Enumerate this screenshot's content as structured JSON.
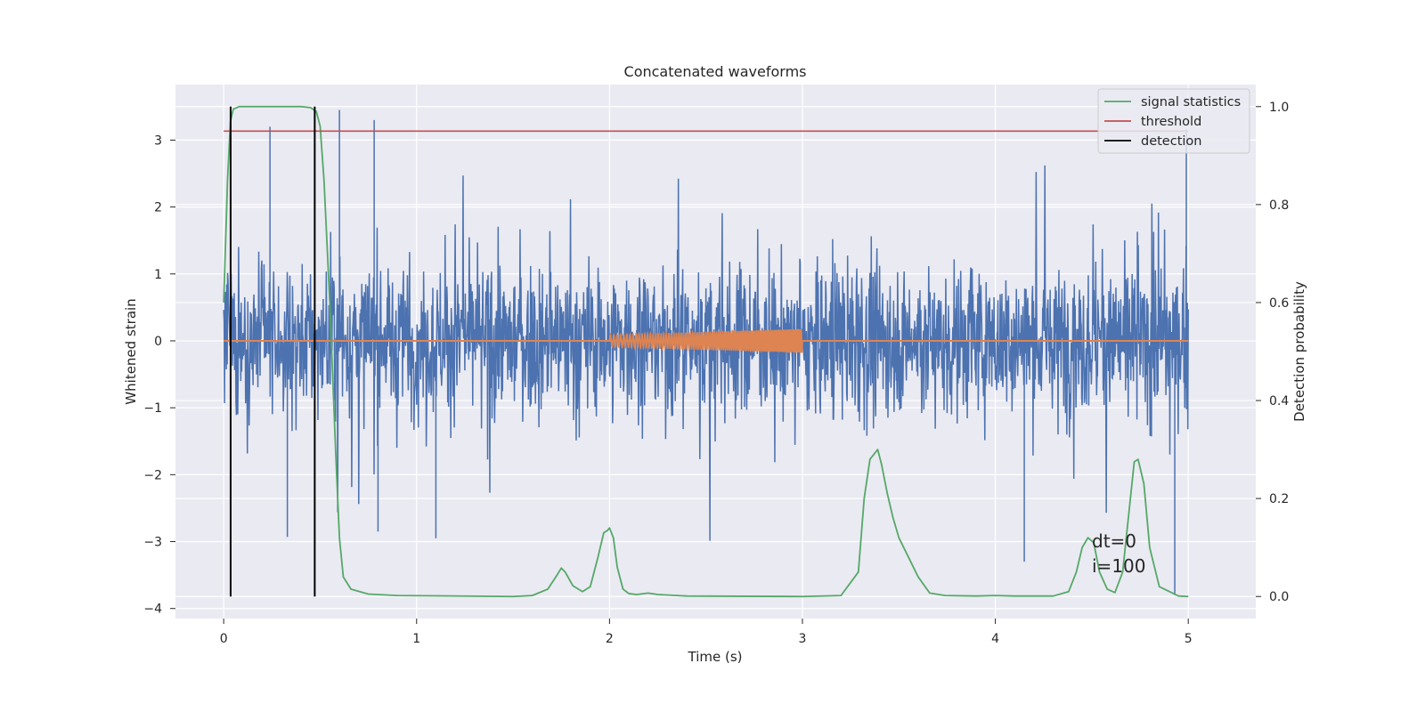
{
  "chart_data": {
    "type": "line",
    "title": "Concatenated waveforms",
    "xlabel": "Time (s)",
    "ylabel_left": "Whitened strain",
    "ylabel_right": "Detection probability",
    "xlim": [
      -0.25,
      5.35
    ],
    "ylim_left": [
      -4.15,
      3.83
    ],
    "ylim_right": [
      -0.045,
      1.045
    ],
    "grid": true,
    "legend_placement": "top-right",
    "x_ticks": [
      0,
      1,
      2,
      3,
      4,
      5
    ],
    "x_tick_labels": [
      "0",
      "1",
      "2",
      "3",
      "4",
      "5"
    ],
    "y_left_ticks": [
      -4,
      -3,
      -2,
      -1,
      0,
      1,
      2,
      3
    ],
    "y_left_tick_labels": [
      "−4",
      "−3",
      "−2",
      "−1",
      "0",
      "1",
      "2",
      "3"
    ],
    "y_right_ticks": [
      0.0,
      0.2,
      0.4,
      0.6,
      0.8,
      1.0
    ],
    "y_right_tick_labels": [
      "0.0",
      "0.2",
      "0.4",
      "0.6",
      "0.8",
      "1.0"
    ],
    "strain": {
      "color": "#4c72b0",
      "x_range": [
        0,
        5
      ],
      "typical_band": [
        -1.3,
        1.3
      ],
      "notable_peaks": [
        {
          "x": 0.6,
          "y": 3.45
        },
        {
          "x": 0.78,
          "y": 3.3
        },
        {
          "x": 0.24,
          "y": 3.2
        },
        {
          "x": 4.99,
          "y": 3.16
        },
        {
          "x": 4.93,
          "y": -3.8
        },
        {
          "x": 4.15,
          "y": -3.3
        },
        {
          "x": 0.33,
          "y": -2.93
        },
        {
          "x": 1.1,
          "y": -2.95
        },
        {
          "x": 0.8,
          "y": -2.85
        }
      ]
    },
    "injected_signal": {
      "color": "#dd8452",
      "x_range": [
        0,
        5
      ],
      "chirp_start": 2.0,
      "chirp_end": 3.0,
      "amp_start": 0.09,
      "amp_end": 0.18
    },
    "series": [
      {
        "name": "signal statistics",
        "color": "#55a868",
        "axis": "right",
        "x": [
          0.0,
          0.02,
          0.035,
          0.05,
          0.08,
          0.12,
          0.2,
          0.3,
          0.4,
          0.45,
          0.48,
          0.5,
          0.52,
          0.55,
          0.58,
          0.6,
          0.62,
          0.66,
          0.75,
          0.9,
          1.5,
          1.6,
          1.68,
          1.73,
          1.75,
          1.77,
          1.81,
          1.86,
          1.9,
          1.94,
          1.97,
          1.99,
          2.0,
          2.02,
          2.04,
          2.07,
          2.1,
          2.14,
          2.2,
          2.25,
          2.4,
          3.0,
          3.2,
          3.29,
          3.32,
          3.35,
          3.38,
          3.39,
          3.41,
          3.44,
          3.47,
          3.5,
          3.55,
          3.6,
          3.66,
          3.74,
          3.9,
          4.0,
          4.1,
          4.3,
          4.38,
          4.42,
          4.45,
          4.48,
          4.51,
          4.54,
          4.58,
          4.62,
          4.66,
          4.7,
          4.72,
          4.74,
          4.77,
          4.8,
          4.85,
          4.95,
          5.0
        ],
        "values": [
          0.6,
          0.85,
          0.97,
          0.995,
          1.0,
          1.0,
          1.0,
          1.0,
          1.0,
          0.998,
          0.99,
          0.96,
          0.85,
          0.6,
          0.3,
          0.12,
          0.04,
          0.015,
          0.005,
          0.002,
          0.0,
          0.002,
          0.015,
          0.045,
          0.058,
          0.05,
          0.022,
          0.01,
          0.02,
          0.08,
          0.13,
          0.135,
          0.14,
          0.12,
          0.06,
          0.015,
          0.006,
          0.004,
          0.007,
          0.004,
          0.001,
          0.0,
          0.002,
          0.05,
          0.2,
          0.28,
          0.295,
          0.3,
          0.27,
          0.21,
          0.16,
          0.12,
          0.08,
          0.04,
          0.007,
          0.002,
          0.001,
          0.002,
          0.001,
          0.001,
          0.01,
          0.05,
          0.1,
          0.12,
          0.11,
          0.05,
          0.015,
          0.008,
          0.05,
          0.2,
          0.275,
          0.28,
          0.23,
          0.1,
          0.02,
          0.001,
          0.0
        ]
      },
      {
        "name": "threshold",
        "color": "#c44e52",
        "axis": "right",
        "x": [
          0,
          5
        ],
        "values": [
          0.95,
          0.95
        ]
      },
      {
        "name": "detection",
        "color": "#000000",
        "axis": "right",
        "x": [
          0.036,
          0.472
        ],
        "values": [
          1.0,
          1.0
        ]
      }
    ],
    "annotations": [
      "dt=0",
      "i=100"
    ]
  }
}
